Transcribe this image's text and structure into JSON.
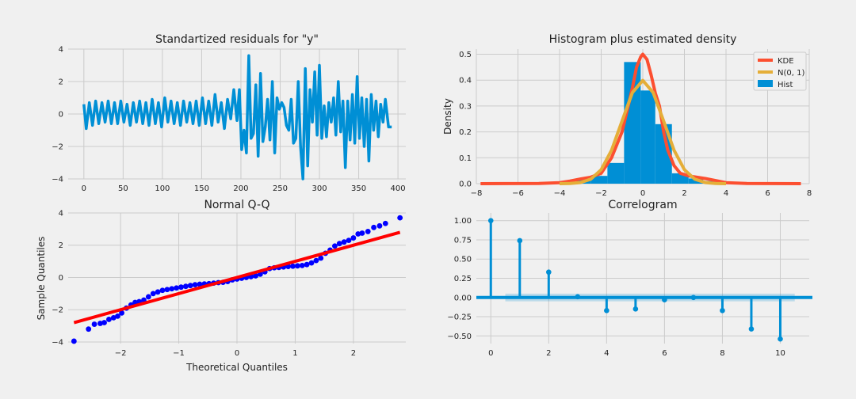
{
  "chart_data": [
    {
      "type": "line",
      "title": "Standartized residuals for \"y\"",
      "xlabel": "",
      "ylabel": "",
      "xlim": [
        -20,
        410
      ],
      "ylim": [
        -4,
        4
      ],
      "xticks": [
        0,
        50,
        100,
        150,
        200,
        250,
        300,
        350,
        400
      ],
      "yticks": [
        -4,
        -2,
        0,
        2,
        4
      ],
      "grid": true,
      "color": "#008fd5",
      "series": [
        {
          "x": [
            0,
            3,
            7,
            11,
            15,
            19,
            23,
            27,
            31,
            35,
            39,
            43,
            47,
            51,
            55,
            59,
            63,
            67,
            71,
            75,
            79,
            83,
            87,
            91,
            95,
            99,
            103,
            107,
            111,
            115,
            119,
            123,
            127,
            131,
            135,
            139,
            143,
            147,
            151,
            155,
            159,
            163,
            167,
            171,
            175,
            179,
            183,
            187,
            191,
            195,
            198,
            201,
            204,
            207,
            210,
            213,
            216,
            219,
            222,
            225,
            228,
            231,
            234,
            237,
            240,
            243,
            246,
            249,
            252,
            255,
            258,
            261,
            264,
            267,
            270,
            273,
            276,
            279,
            282,
            285,
            288,
            291,
            294,
            297,
            300,
            303,
            306,
            309,
            312,
            315,
            318,
            321,
            324,
            327,
            330,
            333,
            336,
            339,
            342,
            345,
            348,
            351,
            354,
            357,
            360,
            363,
            366,
            369,
            372,
            375,
            378,
            381,
            384,
            388,
            392
          ],
          "y": [
            0.6,
            -0.9,
            0.7,
            -0.7,
            0.8,
            -0.6,
            0.7,
            -0.5,
            0.8,
            -0.6,
            0.7,
            -0.6,
            0.8,
            -0.5,
            0.6,
            -0.7,
            0.7,
            -0.5,
            0.8,
            -0.6,
            0.7,
            -0.7,
            0.9,
            -0.6,
            0.7,
            -0.8,
            1.0,
            -0.5,
            0.8,
            -0.6,
            0.7,
            -0.7,
            0.8,
            -0.5,
            0.7,
            -0.6,
            0.8,
            -0.7,
            1.0,
            -0.6,
            0.8,
            -0.7,
            1.2,
            -0.5,
            0.7,
            -0.9,
            0.9,
            -0.3,
            1.5,
            -0.4,
            1.5,
            -2.2,
            -1.0,
            -2.4,
            3.6,
            -1.5,
            -1.2,
            1.8,
            -2.6,
            2.5,
            -1.7,
            -0.8,
            0.9,
            -1.6,
            2.0,
            -2.4,
            1.0,
            0.3,
            0.7,
            0.4,
            -0.7,
            -1.0,
            0.9,
            -1.8,
            -1.5,
            2.0,
            -2.0,
            -4.0,
            2.8,
            -3.2,
            1.5,
            -0.5,
            2.6,
            -1.3,
            3.0,
            -1.5,
            0.5,
            -1.4,
            0.7,
            -0.5,
            1.0,
            -1.3,
            2.0,
            -1.1,
            0.8,
            -3.3,
            0.8,
            -1.6,
            1.2,
            -1.8,
            2.3,
            -1.5,
            1.0,
            -2.0,
            0.9,
            -2.9,
            1.2,
            -1.0,
            0.8,
            -1.4,
            0.6,
            -0.5,
            0.9,
            -0.8,
            -0.8
          ]
        }
      ]
    },
    {
      "type": "bar",
      "title": "Histogram plus estimated density",
      "xlabel": "",
      "ylabel": "Density",
      "xlim": [
        -8,
        8
      ],
      "ylim": [
        0,
        0.52
      ],
      "xticks": [
        -8,
        -6,
        -4,
        -2,
        0,
        2,
        4,
        6,
        8
      ],
      "yticks": [
        0.0,
        0.1,
        0.2,
        0.3,
        0.4,
        0.5
      ],
      "grid": true,
      "legend_position": "top-right",
      "legend": [
        "KDE",
        "N(0, 1)",
        "Hist"
      ],
      "hist": {
        "bin_edges": [
          -3.2,
          -2.5,
          -1.7,
          -0.9,
          -0.1,
          0.6,
          1.4,
          2.2,
          2.9,
          3.7
        ],
        "values": [
          0.02,
          0.03,
          0.08,
          0.47,
          0.36,
          0.23,
          0.04,
          0.02,
          0.01
        ],
        "color": "#008fd5"
      },
      "series": [
        {
          "name": "KDE",
          "color": "#fc4f30",
          "x": [
            -7.8,
            -5.0,
            -4.0,
            -3.5,
            -3.0,
            -2.5,
            -2.0,
            -1.5,
            -1.0,
            -0.7,
            -0.5,
            -0.3,
            -0.1,
            0.0,
            0.2,
            0.4,
            0.6,
            0.8,
            1.0,
            1.2,
            1.5,
            1.8,
            2.2,
            2.6,
            3.0,
            3.5,
            4.0,
            5.0,
            7.6
          ],
          "y": [
            0.0,
            0.001,
            0.004,
            0.01,
            0.018,
            0.025,
            0.04,
            0.1,
            0.2,
            0.3,
            0.37,
            0.45,
            0.49,
            0.5,
            0.48,
            0.42,
            0.35,
            0.3,
            0.2,
            0.13,
            0.07,
            0.04,
            0.03,
            0.025,
            0.02,
            0.012,
            0.004,
            0.001,
            0.0
          ]
        },
        {
          "name": "N(0, 1)",
          "color": "#e5ae38",
          "x": [
            -4.0,
            -3.5,
            -3.0,
            -2.5,
            -2.0,
            -1.5,
            -1.0,
            -0.5,
            0.0,
            0.5,
            1.0,
            1.5,
            2.0,
            2.5,
            3.0,
            3.5,
            4.0
          ],
          "y": [
            0.0001,
            0.0009,
            0.0044,
            0.0175,
            0.054,
            0.1295,
            0.242,
            0.3521,
            0.3989,
            0.3521,
            0.242,
            0.1295,
            0.054,
            0.0175,
            0.0044,
            0.0009,
            0.0001
          ]
        }
      ]
    },
    {
      "type": "scatter",
      "title": "Normal Q-Q",
      "xlabel": "Theoretical Quantiles",
      "ylabel": "Sample Quantiles",
      "xlim": [
        -2.9,
        2.9
      ],
      "ylim": [
        -4.1,
        4.0
      ],
      "xticks": [
        -2,
        -1,
        0,
        1,
        2
      ],
      "yticks": [
        -4,
        -2,
        0,
        2,
        4
      ],
      "grid": true,
      "point_color": "#0000ff",
      "line_color": "#ff0000",
      "reference_line": {
        "x": [
          -2.8,
          2.8
        ],
        "y": [
          -2.8,
          2.8
        ]
      },
      "points": {
        "x": [
          -2.8,
          -2.55,
          -2.45,
          -2.35,
          -2.28,
          -2.2,
          -2.12,
          -2.05,
          -1.98,
          -1.9,
          -1.82,
          -1.75,
          -1.68,
          -1.6,
          -1.52,
          -1.44,
          -1.36,
          -1.28,
          -1.2,
          -1.12,
          -1.04,
          -0.96,
          -0.88,
          -0.8,
          -0.72,
          -0.64,
          -0.56,
          -0.48,
          -0.4,
          -0.32,
          -0.24,
          -0.16,
          -0.08,
          0.0,
          0.08,
          0.16,
          0.24,
          0.32,
          0.4,
          0.48,
          0.56,
          0.64,
          0.72,
          0.8,
          0.88,
          0.96,
          1.04,
          1.12,
          1.2,
          1.28,
          1.36,
          1.44,
          1.52,
          1.6,
          1.68,
          1.76,
          1.84,
          1.92,
          2.0,
          2.08,
          2.15,
          2.25,
          2.35,
          2.45,
          2.55,
          2.8
        ],
        "y": [
          -3.95,
          -3.2,
          -2.9,
          -2.85,
          -2.8,
          -2.6,
          -2.5,
          -2.4,
          -2.2,
          -1.9,
          -1.7,
          -1.55,
          -1.5,
          -1.4,
          -1.2,
          -1.0,
          -0.9,
          -0.8,
          -0.75,
          -0.7,
          -0.65,
          -0.6,
          -0.55,
          -0.5,
          -0.45,
          -0.42,
          -0.4,
          -0.38,
          -0.35,
          -0.32,
          -0.3,
          -0.25,
          -0.15,
          -0.1,
          -0.05,
          0.0,
          0.05,
          0.1,
          0.2,
          0.35,
          0.55,
          0.6,
          0.62,
          0.65,
          0.68,
          0.7,
          0.72,
          0.74,
          0.8,
          0.9,
          1.05,
          1.2,
          1.5,
          1.7,
          1.95,
          2.1,
          2.2,
          2.3,
          2.45,
          2.7,
          2.75,
          2.85,
          3.1,
          3.2,
          3.35,
          3.7
        ]
      }
    },
    {
      "type": "bar",
      "title": "Correlogram",
      "xlabel": "",
      "ylabel": "",
      "xlim": [
        -0.5,
        11
      ],
      "ylim": [
        -0.6,
        1.1
      ],
      "xticks": [
        0,
        2,
        4,
        6,
        8,
        10
      ],
      "yticks": [
        -0.5,
        -0.25,
        0.0,
        0.25,
        0.5,
        0.75,
        1.0
      ],
      "ytick_labels": [
        "−0.50",
        "−0.25",
        "0.00",
        "0.25",
        "0.50",
        "0.75",
        "1.00"
      ],
      "grid": true,
      "color": "#008fd5",
      "confidence_band": {
        "x": [
          0.5,
          10.5
        ],
        "half_width": 0.05
      },
      "lags": [
        0,
        1,
        2,
        3,
        4,
        5,
        6,
        7,
        8,
        9,
        10
      ],
      "values": [
        1.0,
        0.74,
        0.33,
        0.01,
        -0.17,
        -0.15,
        -0.03,
        0.0,
        -0.17,
        -0.41,
        -0.54
      ]
    }
  ]
}
